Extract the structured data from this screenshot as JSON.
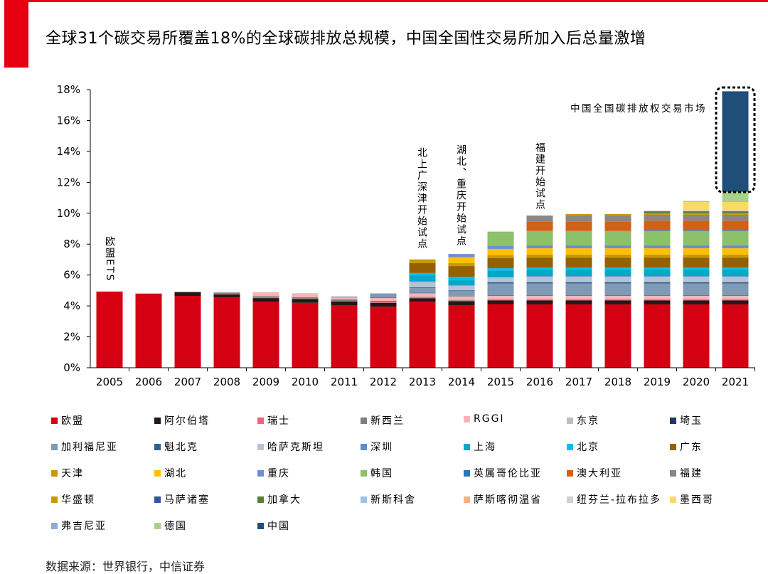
{
  "header": {
    "title": "全球31个碳交易所覆盖18%的全球碳排放总规模，中国全国性交易所加入后总量激增"
  },
  "source": "数据来源：世界银行，中信证券",
  "chart_data": {
    "type": "bar",
    "stacked": true,
    "title": "全球31个碳交易所覆盖18%的全球碳排放总规模，中国全国性交易所加入后总量激增",
    "xlabel": "",
    "ylabel": "",
    "ylim": [
      0,
      18
    ],
    "yticks": [
      "0%",
      "2%",
      "4%",
      "6%",
      "8%",
      "10%",
      "12%",
      "14%",
      "16%",
      "18%"
    ],
    "categories": [
      "2005",
      "2006",
      "2007",
      "2008",
      "2009",
      "2010",
      "2011",
      "2012",
      "2013",
      "2014",
      "2015",
      "2016",
      "2017",
      "2018",
      "2019",
      "2020",
      "2021"
    ],
    "legend_position": "bottom",
    "annotations": [
      {
        "text": "欧盟ETS",
        "category": "2005"
      },
      {
        "text": "北上广深津开始试点",
        "category": "2013"
      },
      {
        "text": "湖北、重庆开始试点",
        "category": "2014"
      },
      {
        "text": "福建开始试点",
        "category": "2016"
      },
      {
        "text": "中国全国碳排放权交易市场",
        "category": "2021"
      }
    ],
    "series": [
      {
        "name": "欧盟",
        "color": "#d50011",
        "values": [
          4.93,
          4.8,
          4.65,
          4.55,
          4.28,
          4.2,
          4.05,
          3.95,
          4.27,
          4.05,
          4.12,
          4.1,
          4.1,
          4.1,
          4.1,
          4.1,
          4.1
        ]
      },
      {
        "name": "阿尔伯塔",
        "color": "#231815",
        "values": [
          0,
          0,
          0.25,
          0.2,
          0.23,
          0.25,
          0.25,
          0.25,
          0.23,
          0.26,
          0.23,
          0.25,
          0.25,
          0.25,
          0.25,
          0.25,
          0.25
        ]
      },
      {
        "name": "瑞士",
        "color": "#f4607a",
        "values": [
          0,
          0,
          0,
          0.02,
          0.02,
          0.02,
          0.02,
          0.03,
          0.03,
          0.03,
          0.03,
          0.03,
          0.03,
          0.03,
          0.03,
          0.03,
          0.03
        ]
      },
      {
        "name": "新西兰",
        "color": "#7f7f7f",
        "values": [
          0,
          0,
          0,
          0.1,
          0.1,
          0.1,
          0.1,
          0.1,
          0.05,
          0.05,
          0.05,
          0.05,
          0.05,
          0.05,
          0.05,
          0.05,
          0.05
        ]
      },
      {
        "name": "RGGI",
        "color": "#f8b4b4",
        "values": [
          0,
          0,
          0,
          0,
          0.26,
          0.23,
          0.14,
          0.18,
          0.22,
          0.22,
          0.2,
          0.2,
          0.2,
          0.2,
          0.2,
          0.2,
          0.2
        ]
      },
      {
        "name": "东京",
        "color": "#bfbfbf",
        "values": [
          0,
          0,
          0,
          0,
          0,
          0.02,
          0.02,
          0.03,
          0.03,
          0.03,
          0.03,
          0.03,
          0.03,
          0.03,
          0.03,
          0.03,
          0.03
        ]
      },
      {
        "name": "埼玉",
        "color": "#1f3864",
        "values": [
          0,
          0,
          0,
          0,
          0,
          0,
          0.02,
          0.02,
          0.02,
          0.02,
          0.02,
          0.02,
          0.02,
          0.02,
          0.02,
          0.02,
          0.02
        ]
      },
      {
        "name": "加利福尼亚",
        "color": "#7f9ab4",
        "values": [
          0,
          0,
          0,
          0,
          0,
          0,
          0,
          0.25,
          0.3,
          0.3,
          0.77,
          0.77,
          0.77,
          0.77,
          0.77,
          0.77,
          0.77
        ]
      },
      {
        "name": "魁北克",
        "color": "#2e6095",
        "values": [
          0,
          0,
          0,
          0,
          0,
          0,
          0,
          0,
          0.05,
          0.05,
          0.09,
          0.09,
          0.09,
          0.09,
          0.09,
          0.09,
          0.09
        ]
      },
      {
        "name": "哈萨克斯坦",
        "color": "#b4c4d6",
        "values": [
          0,
          0,
          0,
          0,
          0,
          0,
          0,
          0,
          0.35,
          0.3,
          0.3,
          0.34,
          0.34,
          0.34,
          0.34,
          0.34,
          0.34
        ]
      },
      {
        "name": "深圳",
        "color": "#5b8fc6",
        "values": [
          0,
          0,
          0,
          0,
          0,
          0,
          0,
          0,
          0.05,
          0.05,
          0.05,
          0.05,
          0.05,
          0.05,
          0.05,
          0.05,
          0.05
        ]
      },
      {
        "name": "上海",
        "color": "#00a9c6",
        "values": [
          0,
          0,
          0,
          0,
          0,
          0,
          0,
          0,
          0.38,
          0.3,
          0.4,
          0.4,
          0.4,
          0.4,
          0.4,
          0.4,
          0.4
        ]
      },
      {
        "name": "北京",
        "color": "#00c0ef",
        "values": [
          0,
          0,
          0,
          0,
          0,
          0,
          0,
          0,
          0.15,
          0.23,
          0.15,
          0.15,
          0.15,
          0.15,
          0.15,
          0.15,
          0.15
        ]
      },
      {
        "name": "广东",
        "color": "#946000",
        "values": [
          0,
          0,
          0,
          0,
          0,
          0,
          0,
          0,
          0.65,
          0.69,
          0.65,
          0.65,
          0.65,
          0.65,
          0.65,
          0.65,
          0.65
        ]
      },
      {
        "name": "天津",
        "color": "#c79a00",
        "values": [
          0,
          0,
          0,
          0,
          0,
          0,
          0,
          0,
          0.23,
          0.2,
          0.2,
          0.2,
          0.2,
          0.2,
          0.2,
          0.2,
          0.2
        ]
      },
      {
        "name": "湖北",
        "color": "#ffc000",
        "values": [
          0,
          0,
          0,
          0,
          0,
          0,
          0,
          0,
          0,
          0.38,
          0.4,
          0.4,
          0.4,
          0.4,
          0.4,
          0.4,
          0.4
        ]
      },
      {
        "name": "重庆",
        "color": "#6d8fd2",
        "values": [
          0,
          0,
          0,
          0,
          0,
          0,
          0,
          0,
          0,
          0.2,
          0.2,
          0.2,
          0.2,
          0.2,
          0.2,
          0.2,
          0.2
        ]
      },
      {
        "name": "韩国",
        "color": "#8cc06a",
        "values": [
          0,
          0,
          0,
          0,
          0,
          0,
          0,
          0,
          0,
          0,
          0.92,
          0.92,
          0.92,
          0.92,
          0.92,
          0.92,
          0.92
        ]
      },
      {
        "name": "英属哥伦比亚",
        "color": "#2e75b6",
        "values": [
          0,
          0,
          0,
          0,
          0,
          0,
          0,
          0,
          0,
          0,
          0,
          0,
          0,
          0,
          0.05,
          0.05,
          0.05
        ]
      },
      {
        "name": "澳大利亚",
        "color": "#d26016",
        "values": [
          0,
          0,
          0,
          0,
          0,
          0,
          0,
          0,
          0,
          0,
          0,
          0.62,
          0.62,
          0.62,
          0.62,
          0.62,
          0.62
        ]
      },
      {
        "name": "福建",
        "color": "#878787",
        "values": [
          0,
          0,
          0,
          0,
          0,
          0,
          0,
          0,
          0,
          0,
          0,
          0.38,
          0.38,
          0.38,
          0.38,
          0.38,
          0.38
        ]
      },
      {
        "name": "华盛顿",
        "color": "#c99800",
        "values": [
          0,
          0,
          0,
          0,
          0,
          0,
          0,
          0,
          0,
          0,
          0,
          0,
          0.1,
          0.1,
          0.1,
          0.1,
          0.1
        ]
      },
      {
        "name": "马萨诸塞",
        "color": "#2f55a4",
        "values": [
          0,
          0,
          0,
          0,
          0,
          0,
          0,
          0,
          0,
          0,
          0,
          0,
          0,
          0,
          0.03,
          0.03,
          0.03
        ]
      },
      {
        "name": "加拿大",
        "color": "#548235",
        "values": [
          0,
          0,
          0,
          0,
          0,
          0,
          0,
          0,
          0,
          0,
          0,
          0,
          0,
          0,
          0.1,
          0.1,
          0.1
        ]
      },
      {
        "name": "新斯科舍",
        "color": "#9dc3e6",
        "values": [
          0,
          0,
          0,
          0,
          0,
          0,
          0,
          0,
          0,
          0,
          0,
          0,
          0,
          0,
          0,
          0.02,
          0.02
        ]
      },
      {
        "name": "萨斯喀彻温省",
        "color": "#f4b183",
        "values": [
          0,
          0,
          0,
          0,
          0,
          0,
          0,
          0,
          0,
          0,
          0,
          0,
          0,
          0,
          0.02,
          0.02,
          0.02
        ]
      },
      {
        "name": "纽芬兰-拉布拉多",
        "color": "#d0d0d0",
        "values": [
          0,
          0,
          0,
          0,
          0,
          0,
          0,
          0,
          0,
          0,
          0,
          0,
          0,
          0,
          0.02,
          0.02,
          0.02
        ]
      },
      {
        "name": "墨西哥",
        "color": "#ffd966",
        "values": [
          0,
          0,
          0,
          0,
          0,
          0,
          0,
          0,
          0,
          0,
          0,
          0,
          0,
          0,
          0,
          0.55,
          0.55
        ]
      },
      {
        "name": "弗吉尼亚",
        "color": "#8eaadb",
        "values": [
          0,
          0,
          0,
          0,
          0,
          0,
          0,
          0,
          0,
          0,
          0,
          0,
          0,
          0,
          0,
          0.05,
          0.05
        ]
      },
      {
        "name": "德国",
        "color": "#a9d18e",
        "values": [
          0,
          0,
          0,
          0,
          0,
          0,
          0,
          0,
          0,
          0,
          0,
          0,
          0,
          0,
          0,
          0,
          0.6
        ]
      },
      {
        "name": "中国",
        "color": "#1f4e79",
        "values": [
          0,
          0,
          0,
          0,
          0,
          0,
          0,
          0,
          0,
          0,
          0,
          0,
          0,
          0,
          0,
          0,
          6.5
        ]
      }
    ]
  }
}
